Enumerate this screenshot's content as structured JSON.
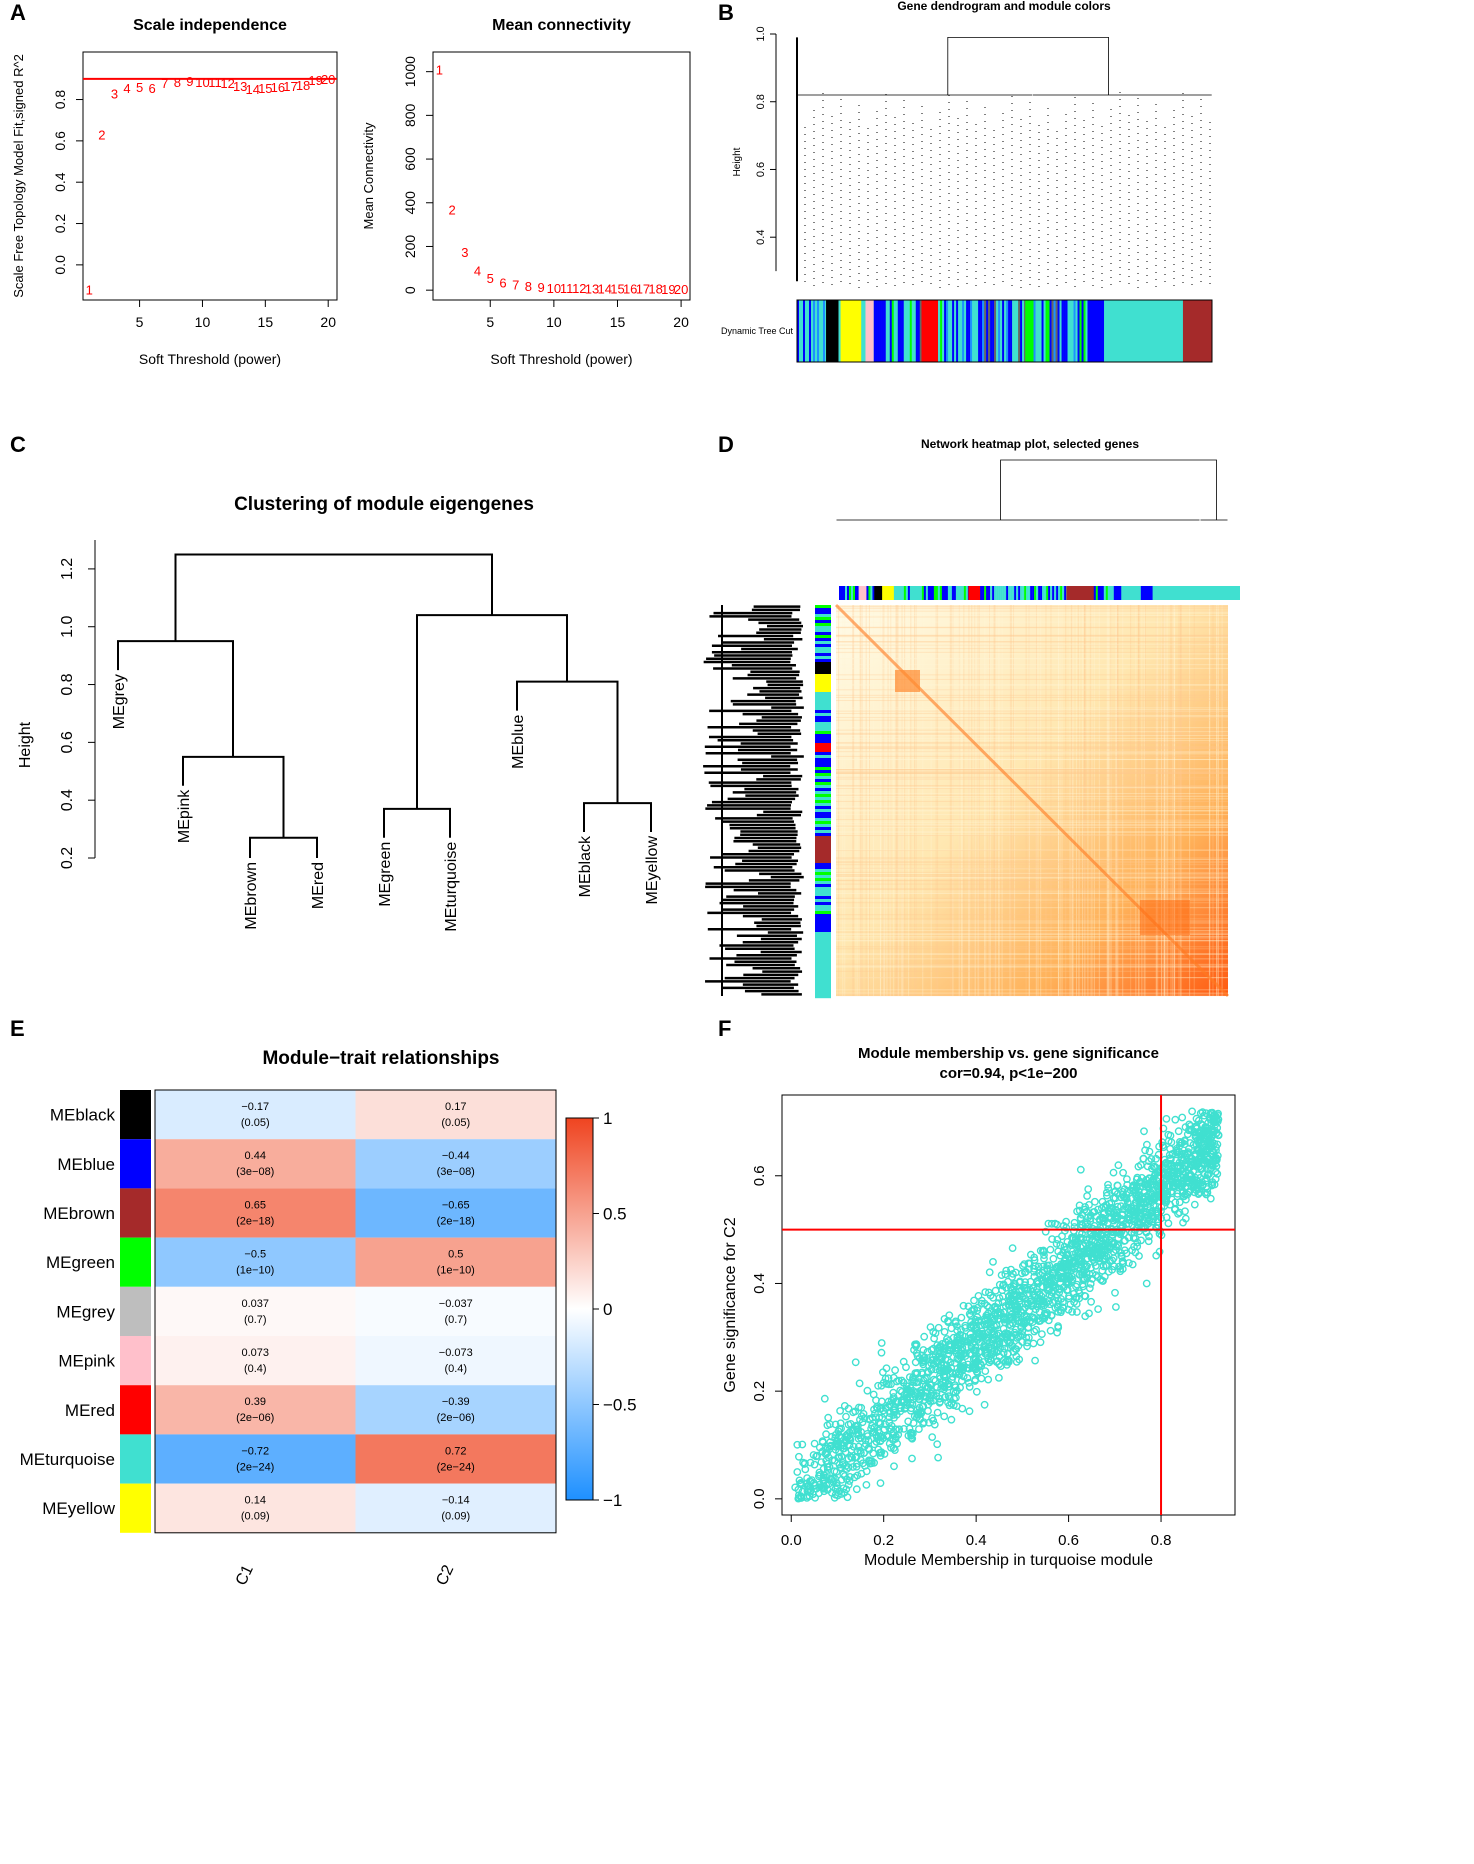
{
  "panels": {
    "A": "A",
    "B": "B",
    "C": "C",
    "D": "D",
    "E": "E",
    "F": "F"
  },
  "colors": {
    "red": "#ff0000",
    "black": "#000000",
    "turquoise": "#40e0d0",
    "module_colors": {
      "black": "#000000",
      "blue": "#0000ff",
      "brown": "#a52a2a",
      "green": "#00ff00",
      "grey": "#bebebe",
      "pink": "#ffc0cb",
      "red": "#ff0000",
      "turquoise": "#40e0d0",
      "yellow": "#ffff00"
    }
  },
  "chart_data": [
    {
      "id": "A1",
      "type": "scatter",
      "title": "Scale independence",
      "xlabel": "Soft Threshold (power)",
      "ylabel": "Scale Free Topology Model Fit,signed R^2",
      "xlim": [
        0.5,
        20.7
      ],
      "ylim": [
        -0.17,
        1.03
      ],
      "xticks": [
        "5",
        "10",
        "15",
        "20"
      ],
      "yticks": [
        "0.0",
        "0.2",
        "0.4",
        "0.6",
        "0.8"
      ],
      "x": [
        1,
        2,
        3,
        4,
        5,
        6,
        7,
        8,
        9,
        10,
        11,
        12,
        13,
        14,
        15,
        16,
        17,
        18,
        19,
        20
      ],
      "y": [
        -0.12,
        0.63,
        0.83,
        0.855,
        0.86,
        0.855,
        0.88,
        0.885,
        0.89,
        0.885,
        0.885,
        0.88,
        0.865,
        0.85,
        0.855,
        0.86,
        0.865,
        0.87,
        0.895,
        0.9
      ],
      "point_labels": [
        "1",
        "2",
        "3",
        "4",
        "5",
        "6",
        "7",
        "8",
        "9",
        "10",
        "11",
        "12",
        "13",
        "14",
        "15",
        "16",
        "17",
        "18",
        "19",
        "20"
      ],
      "hline": 0.9
    },
    {
      "id": "A2",
      "type": "scatter",
      "title": "Mean connectivity",
      "xlabel": "Soft Threshold (power)",
      "ylabel": "Mean Connectivity",
      "xlim": [
        0.5,
        20.7
      ],
      "ylim": [
        -45,
        1090
      ],
      "xticks": [
        "5",
        "10",
        "15",
        "20"
      ],
      "yticks": [
        "0",
        "200",
        "400",
        "600",
        "800",
        "1000"
      ],
      "x": [
        1,
        2,
        3,
        4,
        5,
        6,
        7,
        8,
        9,
        10,
        11,
        12,
        13,
        14,
        15,
        16,
        17,
        18,
        19,
        20
      ],
      "y": [
        1010,
        370,
        175,
        90,
        55,
        35,
        25,
        18,
        14,
        11,
        10,
        9,
        8,
        8,
        7,
        7,
        7,
        7,
        6,
        6
      ],
      "point_labels": [
        "1",
        "2",
        "3",
        "4",
        "5",
        "6",
        "7",
        "8",
        "9",
        "10",
        "11",
        "12",
        "13",
        "14",
        "15",
        "16",
        "17",
        "18",
        "19",
        "20"
      ]
    },
    {
      "id": "B",
      "type": "dendrogram",
      "title": "Gene dendrogram and module colors",
      "ylabel": "Height",
      "ylim": [
        0.25,
        1.0
      ],
      "yticks": [
        "0.4",
        "0.6",
        "0.8",
        "1.0"
      ],
      "colorbar_label": "Dynamic Tree Cut"
    },
    {
      "id": "C",
      "type": "dendrogram",
      "title": "Clustering of module eigengenes",
      "ylabel": "Height",
      "ylim": [
        0.2,
        1.3
      ],
      "yticks": [
        "0.2",
        "0.4",
        "0.6",
        "0.8",
        "1.0",
        "1.2"
      ],
      "leaves": [
        "MEgrey",
        "MEpink",
        "MEbrown",
        "MEred",
        "MEgreen",
        "MEturquoise",
        "MEblue",
        "MEblack",
        "MEyellow"
      ],
      "merges": [
        {
          "a": "MEbrown",
          "b": "MEred",
          "height": 0.27
        },
        {
          "a": "MEgreen",
          "b": "MEturquoise",
          "height": 0.37
        },
        {
          "a": "MEblack",
          "b": "MEyellow",
          "height": 0.39
        },
        {
          "a": "MEpink",
          "b": "(MEbrown,MEred)",
          "height": 0.55
        },
        {
          "a": "MEblue",
          "b": "(MEblack,MEyellow)",
          "height": 0.81
        },
        {
          "a": "MEgrey",
          "b": "(MEpink,...)",
          "height": 0.95
        },
        {
          "a": "(MEgreen,MEturquoise)",
          "b": "(MEblue,...)",
          "height": 1.04
        },
        {
          "a": "left cluster",
          "b": "right cluster",
          "height": 1.25
        }
      ]
    },
    {
      "id": "D",
      "type": "heatmap",
      "title": "Network heatmap plot, selected genes"
    },
    {
      "id": "E",
      "type": "heatmap",
      "title": "Module−trait relationships",
      "rows": [
        "MEblack",
        "MEblue",
        "MEbrown",
        "MEgreen",
        "MEgrey",
        "MEpink",
        "MEred",
        "MEturquoise",
        "MEyellow"
      ],
      "columns": [
        "C1",
        "C2"
      ],
      "values": [
        [
          -0.17,
          0.17
        ],
        [
          0.44,
          -0.44
        ],
        [
          0.65,
          -0.65
        ],
        [
          -0.5,
          0.5
        ],
        [
          0.037,
          -0.037
        ],
        [
          0.073,
          -0.073
        ],
        [
          0.39,
          -0.39
        ],
        [
          -0.72,
          0.72
        ],
        [
          0.14,
          -0.14
        ]
      ],
      "labels": [
        [
          "−0.17",
          "0.17"
        ],
        [
          "0.44",
          "−0.44"
        ],
        [
          "0.65",
          "−0.65"
        ],
        [
          "−0.5",
          "0.5"
        ],
        [
          "0.037",
          "−0.037"
        ],
        [
          "0.073",
          "−0.073"
        ],
        [
          "0.39",
          "−0.39"
        ],
        [
          "−0.72",
          "0.72"
        ],
        [
          "0.14",
          "−0.14"
        ]
      ],
      "pvalues": [
        [
          "(0.05)",
          "(0.05)"
        ],
        [
          "(3e−08)",
          "(3e−08)"
        ],
        [
          "(2e−18)",
          "(2e−18)"
        ],
        [
          "(1e−10)",
          "(1e−10)"
        ],
        [
          "(0.7)",
          "(0.7)"
        ],
        [
          "(0.4)",
          "(0.4)"
        ],
        [
          "(2e−06)",
          "(2e−06)"
        ],
        [
          "(2e−24)",
          "(2e−24)"
        ],
        [
          "(0.09)",
          "(0.09)"
        ]
      ],
      "legend_ticks": [
        "1",
        "0.5",
        "0",
        "−0.5",
        "−1"
      ],
      "legend_range": [
        -1,
        1
      ]
    },
    {
      "id": "F",
      "type": "scatter",
      "title": "Module membership vs. gene significance",
      "subtitle": "cor=0.94, p<1e−200",
      "xlabel": "Module Membership in turquoise module",
      "ylabel": "Gene significance for C2",
      "xlim": [
        -0.02,
        0.96
      ],
      "ylim": [
        -0.03,
        0.75
      ],
      "xticks": [
        "0.0",
        "0.2",
        "0.4",
        "0.6",
        "0.8"
      ],
      "yticks": [
        "0.0",
        "0.2",
        "0.4",
        "0.6"
      ],
      "vline": 0.8,
      "hline": 0.5,
      "n_points": 2200,
      "slope": 0.72,
      "intercept": 0.0
    }
  ]
}
